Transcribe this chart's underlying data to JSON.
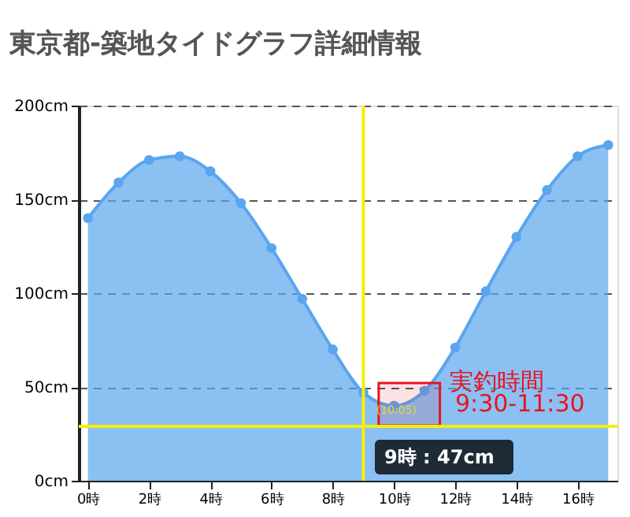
{
  "chart_data": {
    "type": "area",
    "title": "東京都-築地タイドグラフ詳細情報",
    "x": [
      0,
      1,
      2,
      3,
      4,
      5,
      6,
      7,
      8,
      9,
      10,
      11,
      12,
      13,
      14,
      15,
      16,
      17
    ],
    "series": [
      {
        "color": "#5aa5ee",
        "values": [
          140,
          159,
          171,
          173,
          165,
          148,
          124,
          97,
          70,
          47,
          40,
          48,
          71,
          101,
          130,
          155,
          173,
          179
        ]
      }
    ],
    "xlim": [
      -0.3,
      17.3
    ],
    "xticks": [
      {
        "value": 0,
        "label": "0時"
      },
      {
        "value": 2,
        "label": "2時"
      },
      {
        "value": 4,
        "label": "4時"
      },
      {
        "value": 6,
        "label": "6時"
      },
      {
        "value": 8,
        "label": "8時"
      },
      {
        "value": 10,
        "label": "10時"
      },
      {
        "value": 12,
        "label": "12時"
      },
      {
        "value": 14,
        "label": "14時"
      },
      {
        "value": 16,
        "label": "16時"
      }
    ],
    "ylim": [
      0,
      200
    ],
    "yticks": [
      {
        "value": 0,
        "label": "0cm"
      },
      {
        "value": 50,
        "label": "50cm"
      },
      {
        "value": 100,
        "label": "100cm"
      },
      {
        "value": 150,
        "label": "150cm"
      },
      {
        "value": 200,
        "label": "200cm"
      }
    ],
    "grid": "y",
    "marker": "circle",
    "ref_lines": [
      {
        "axis": "y",
        "value": 29,
        "color": "#f5f000"
      },
      {
        "axis": "x",
        "value": 9,
        "color": "#f5f000"
      }
    ],
    "bands": [
      {
        "axis": "x",
        "from": 9.5,
        "to": 11.5,
        "label": "実釣時間",
        "color": "#e8141e"
      }
    ],
    "annotations": [
      "9:30-11:30",
      {
        "text": "(10:05)",
        "x": 10.08,
        "y": 40
      },
      "9時 : 47cm"
    ]
  }
}
